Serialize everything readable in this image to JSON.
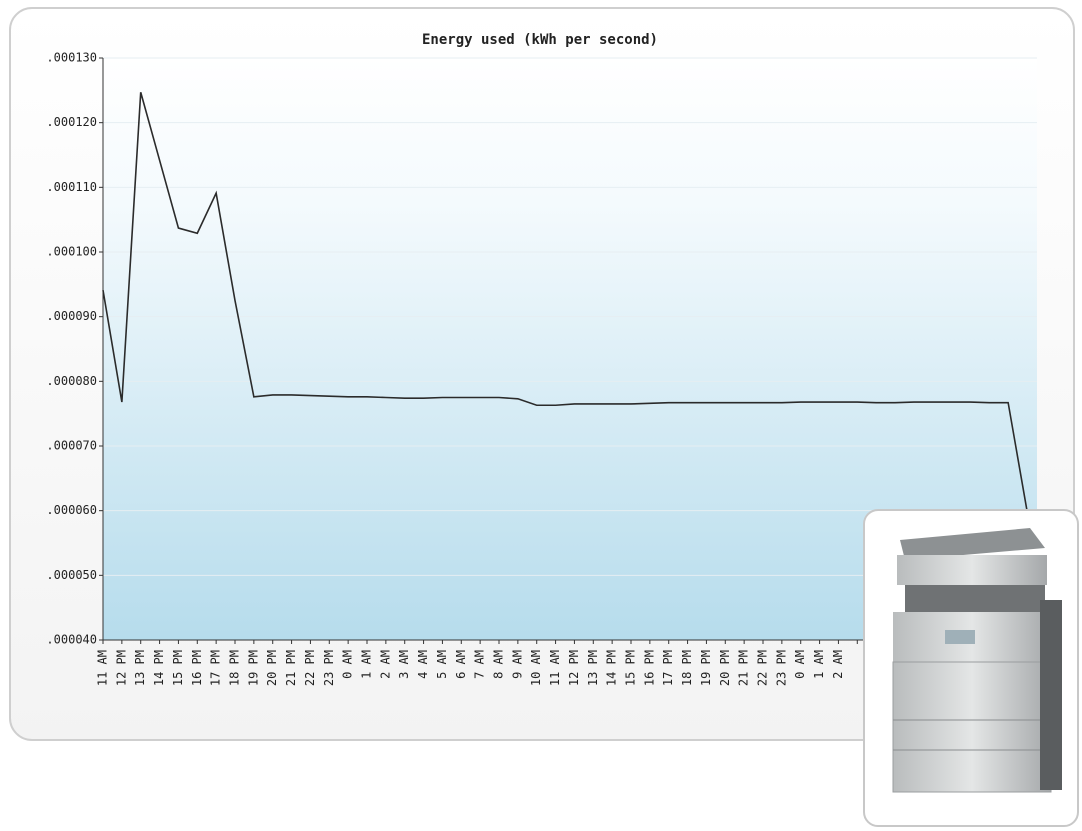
{
  "chart_data": {
    "type": "line",
    "title": "Energy used (kWh per second)",
    "categories": [
      "11 AM",
      "12 PM",
      "13 PM",
      "14 PM",
      "15 PM",
      "16 PM",
      "17 PM",
      "18 PM",
      "19 PM",
      "20 PM",
      "21 PM",
      "22 PM",
      "23 PM",
      "0 AM",
      "1 AM",
      "2 AM",
      "3 AM",
      "4 AM",
      "5 AM",
      "6 AM",
      "7 AM",
      "8 AM",
      "9 AM",
      "10 AM",
      "11 AM",
      "12 PM",
      "13 PM",
      "14 PM",
      "15 PM",
      "16 PM",
      "17 PM",
      "18 PM",
      "19 PM",
      "20 PM",
      "21 PM",
      "22 PM",
      "23 PM",
      "0 AM",
      "1 AM",
      "2 AM",
      null,
      null,
      null,
      null,
      null,
      null,
      null,
      null,
      null,
      null
    ],
    "series": [
      {
        "name": "Energy used",
        "color": "#2b2b2b",
        "values": [
          9.41e-05,
          7.68e-05,
          0.0001247,
          0.0001142,
          0.0001037,
          0.0001029,
          0.0001091,
          9.25e-05,
          7.76e-05,
          7.79e-05,
          7.79e-05,
          7.78e-05,
          7.77e-05,
          7.76e-05,
          7.76e-05,
          7.75e-05,
          7.74e-05,
          7.74e-05,
          7.75e-05,
          7.75e-05,
          7.75e-05,
          7.75e-05,
          7.73e-05,
          7.63e-05,
          7.63e-05,
          7.65e-05,
          7.65e-05,
          7.65e-05,
          7.65e-05,
          7.66e-05,
          7.67e-05,
          7.67e-05,
          7.67e-05,
          7.67e-05,
          7.67e-05,
          7.67e-05,
          7.67e-05,
          7.68e-05,
          7.68e-05,
          7.68e-05,
          7.68e-05,
          7.67e-05,
          7.67e-05,
          7.68e-05,
          7.68e-05,
          7.68e-05,
          7.68e-05,
          7.67e-05,
          7.67e-05,
          6e-05
        ]
      }
    ],
    "ylim": [
      4e-05,
      0.00013
    ],
    "yticks": [
      {
        "value": 4e-05,
        "label": ".000040"
      },
      {
        "value": 5e-05,
        "label": ".000050"
      },
      {
        "value": 6e-05,
        "label": ".000060"
      },
      {
        "value": 7e-05,
        "label": ".000070"
      },
      {
        "value": 8e-05,
        "label": ".000080"
      },
      {
        "value": 9e-05,
        "label": ".000090"
      },
      {
        "value": 0.0001,
        "label": ".000100"
      },
      {
        "value": 0.00011,
        "label": ".000110"
      },
      {
        "value": 0.00012,
        "label": ".000120"
      },
      {
        "value": 0.00013,
        "label": ".000130"
      }
    ],
    "grid": true
  }
}
